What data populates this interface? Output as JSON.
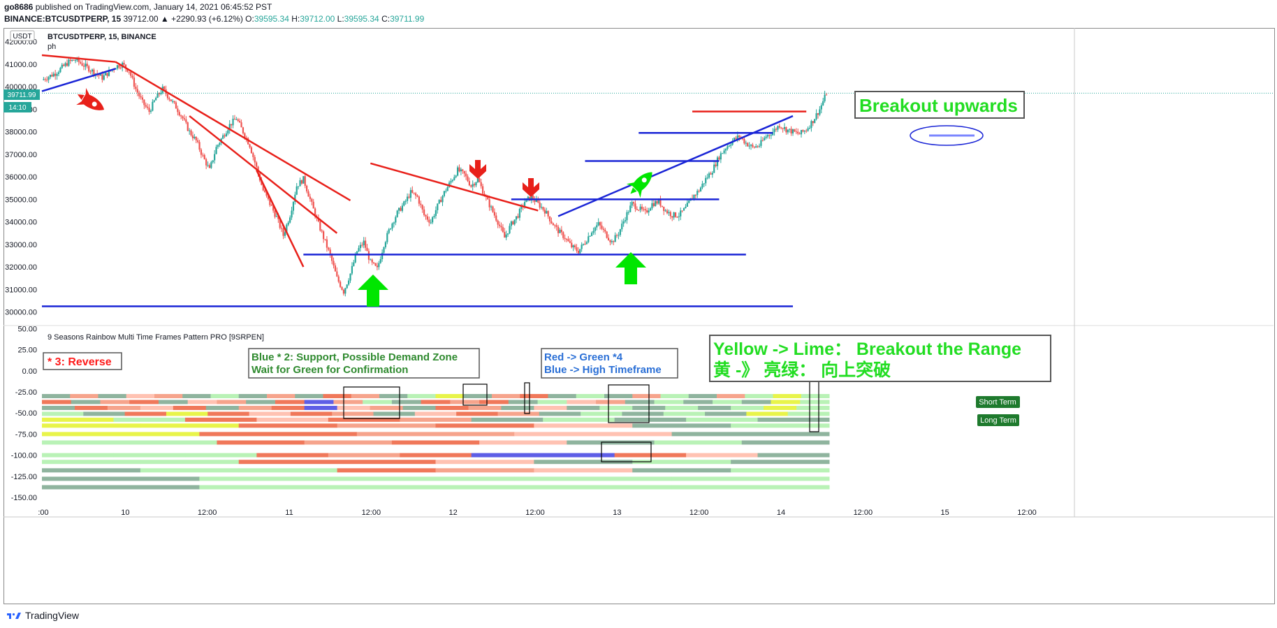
{
  "header": {
    "publisher": "go8686",
    "published_text": "published on TradingView.com, January 14, 2021 06:45:52 PST",
    "symbol_line": "BINANCE:BTCUSDTPERP, 15",
    "last_change": "39712.00 ▲ +2290.93 (+6.12%)",
    "o_label": "O:",
    "o_value": "39595.34",
    "h_label": "H:",
    "h_value": "39712.00",
    "l_label": "L:",
    "l_value": "39595.34",
    "c_label": "C:",
    "c_value": "39711.99"
  },
  "pane_main": {
    "currency": "USDT",
    "legend_title": "BTCUSDTPERP, 15, BINANCE",
    "legend_sub": "ph",
    "price_tag": "39711.99",
    "time_tag": "14:10",
    "annotation_breakout": "Breakout upwards"
  },
  "pane_indicator": {
    "title": "9 Seasons Rainbow Multi Time Frames Pattern PRO [9SRPEN]",
    "note_reverse": "* 3:  Reverse",
    "note_blue_1": "Blue * 2: Support, Possible Demand Zone",
    "note_blue_2": "Wait for Green for Confirmation",
    "note_red_1": "Red -> Green *4",
    "note_red_2": "Blue -> High Timeframe",
    "note_yellow_1": "Yellow -> Lime：  Breakout the Range",
    "note_yellow_2": "黄 -》 亮绿：  向上突破",
    "label_short": "Short Term",
    "label_long": "Long Term"
  },
  "footer": {
    "brand": "TradingView"
  },
  "colors": {
    "up": "#26a69a",
    "down": "#ef5350",
    "trend_red": "#e8201a",
    "trend_blue": "#1a25d6",
    "arrow_green": "#00e600",
    "lime_text": "#22dd22"
  },
  "chart_data": {
    "type": "candlestick",
    "symbol": "BINANCE:BTCUSDTPERP",
    "interval": "15",
    "ylim": [
      29800,
      42300
    ],
    "y_ticks": [
      "42000.00",
      "41000.00",
      "40000.00",
      "39000.00",
      "38000.00",
      "37000.00",
      "36000.00",
      "35000.00",
      "34000.00",
      "33000.00",
      "32000.00",
      "31000.00",
      "30000.00"
    ],
    "x_ticks": [
      ":00",
      "10",
      "12:00",
      "11",
      "12:00",
      "12",
      "12:00",
      "13",
      "12:00",
      "14",
      "12:00",
      "15",
      "12:00"
    ],
    "price_path": [
      [
        0,
        40300
      ],
      [
        2,
        40600
      ],
      [
        4,
        41100
      ],
      [
        5,
        41200
      ],
      [
        7,
        40800
      ],
      [
        9,
        40400
      ],
      [
        11,
        40900
      ],
      [
        12,
        41000
      ],
      [
        13,
        40700
      ],
      [
        14,
        39900
      ],
      [
        15,
        39300
      ],
      [
        16,
        38900
      ],
      [
        17,
        39500
      ],
      [
        18,
        39900
      ],
      [
        19,
        39500
      ],
      [
        20,
        39100
      ],
      [
        21,
        38600
      ],
      [
        22,
        38000
      ],
      [
        23,
        37600
      ],
      [
        24,
        36900
      ],
      [
        25,
        36300
      ],
      [
        26,
        37300
      ],
      [
        27,
        37800
      ],
      [
        28,
        38300
      ],
      [
        29,
        38600
      ],
      [
        30,
        38000
      ],
      [
        31,
        37400
      ],
      [
        32,
        36400
      ],
      [
        33,
        35400
      ],
      [
        34,
        34800
      ],
      [
        35,
        34200
      ],
      [
        36,
        33400
      ],
      [
        37,
        34300
      ],
      [
        38,
        35600
      ],
      [
        39,
        35900
      ],
      [
        40,
        35000
      ],
      [
        41,
        34100
      ],
      [
        42,
        33300
      ],
      [
        43,
        32500
      ],
      [
        44,
        31500
      ],
      [
        45,
        30900
      ],
      [
        46,
        31700
      ],
      [
        47,
        32700
      ],
      [
        48,
        33100
      ],
      [
        49,
        32200
      ],
      [
        50,
        31900
      ],
      [
        51,
        33000
      ],
      [
        52,
        33800
      ],
      [
        53,
        34400
      ],
      [
        54,
        34800
      ],
      [
        55,
        35300
      ],
      [
        56,
        35100
      ],
      [
        57,
        34300
      ],
      [
        58,
        34000
      ],
      [
        59,
        34700
      ],
      [
        60,
        35300
      ],
      [
        61,
        35800
      ],
      [
        62,
        36300
      ],
      [
        63,
        36100
      ],
      [
        64,
        35600
      ],
      [
        65,
        35900
      ],
      [
        66,
        35200
      ],
      [
        67,
        34600
      ],
      [
        68,
        34000
      ],
      [
        69,
        33300
      ],
      [
        70,
        33900
      ],
      [
        71,
        34300
      ],
      [
        72,
        34900
      ],
      [
        73,
        35100
      ],
      [
        74,
        34800
      ],
      [
        75,
        34500
      ],
      [
        76,
        34000
      ],
      [
        77,
        33600
      ],
      [
        78,
        33300
      ],
      [
        79,
        32900
      ],
      [
        80,
        32700
      ],
      [
        81,
        33100
      ],
      [
        82,
        33600
      ],
      [
        83,
        33900
      ],
      [
        84,
        33500
      ],
      [
        85,
        33100
      ],
      [
        86,
        33500
      ],
      [
        87,
        34200
      ],
      [
        88,
        34800
      ],
      [
        89,
        34600
      ],
      [
        90,
        34400
      ],
      [
        91,
        34800
      ],
      [
        92,
        34900
      ],
      [
        93,
        34500
      ],
      [
        94,
        34300
      ],
      [
        95,
        34300
      ],
      [
        96,
        34600
      ],
      [
        97,
        35100
      ],
      [
        98,
        35400
      ],
      [
        99,
        35900
      ],
      [
        100,
        36300
      ],
      [
        101,
        36900
      ],
      [
        102,
        37300
      ],
      [
        103,
        37600
      ],
      [
        104,
        37800
      ],
      [
        105,
        37500
      ],
      [
        106,
        37300
      ],
      [
        107,
        37400
      ],
      [
        108,
        37800
      ],
      [
        109,
        38000
      ],
      [
        110,
        38300
      ],
      [
        111,
        38100
      ],
      [
        112,
        38000
      ],
      [
        113,
        37900
      ],
      [
        114,
        38100
      ],
      [
        115,
        38500
      ],
      [
        116,
        39000
      ],
      [
        117,
        39712
      ]
    ],
    "trendlines": [
      {
        "color": "red",
        "from": [
          0,
          41400
        ],
        "to": [
          11,
          41100
        ]
      },
      {
        "color": "red",
        "from": [
          11,
          41100
        ],
        "to": [
          46,
          34950
        ]
      },
      {
        "color": "red",
        "from": [
          22,
          38700
        ],
        "to": [
          44,
          33500
        ]
      },
      {
        "color": "red",
        "from": [
          32,
          36300
        ],
        "to": [
          39,
          32000
        ]
      },
      {
        "color": "red",
        "from": [
          49,
          36600
        ],
        "to": [
          74,
          34500
        ]
      },
      {
        "color": "red",
        "from": [
          97,
          38900
        ],
        "to": [
          114,
          38900
        ]
      },
      {
        "color": "blue",
        "from": [
          0,
          39800
        ],
        "to": [
          11,
          40800
        ]
      },
      {
        "color": "blue",
        "from": [
          39,
          32550
        ],
        "to": [
          105,
          32550
        ]
      },
      {
        "color": "blue",
        "from": [
          0,
          30250
        ],
        "to": [
          112,
          30250
        ]
      },
      {
        "color": "blue",
        "from": [
          70,
          35000
        ],
        "to": [
          101,
          35000
        ]
      },
      {
        "color": "blue",
        "from": [
          77,
          34250
        ],
        "to": [
          112,
          38700
        ]
      },
      {
        "color": "blue",
        "from": [
          81,
          36700
        ],
        "to": [
          101,
          36700
        ]
      },
      {
        "color": "blue",
        "from": [
          89,
          37950
        ],
        "to": [
          109,
          37950
        ]
      }
    ],
    "indicator": {
      "ylim": [
        -155,
        52
      ],
      "y_ticks": [
        "50.00",
        "25.00",
        "0.00",
        "-25.00",
        "-50.00",
        "-75.00",
        "-100.00",
        "-125.00",
        "-150.00"
      ],
      "row_levels": [
        -30,
        -37,
        -44,
        -51,
        -58,
        -65,
        -75,
        -85,
        -100,
        -108,
        -118,
        -128,
        -138
      ],
      "legend": [
        "Short Term",
        "Long Term"
      ]
    }
  }
}
